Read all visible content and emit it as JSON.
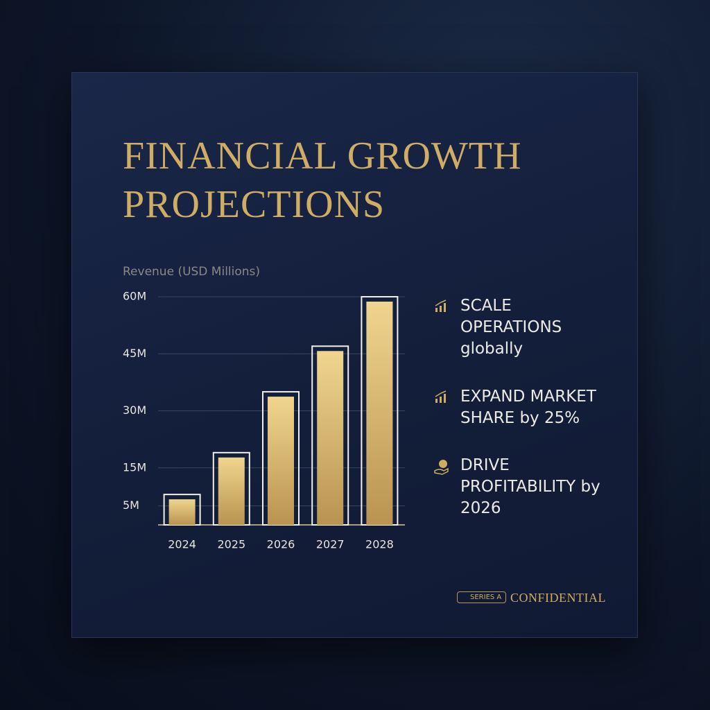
{
  "chart_data": {
    "type": "bar",
    "title": "FINANCIAL GROWTH PROJECTIONS",
    "y_label": "Revenue (USD Millions)",
    "categories": [
      "2024",
      "2025",
      "2026",
      "2027",
      "2028"
    ],
    "values": [
      8,
      19,
      35,
      47,
      60
    ],
    "color": "#d9b56a",
    "ylim": [
      0,
      60
    ],
    "yticks": [
      {
        "value": 5,
        "label": "5M"
      },
      {
        "value": 15,
        "label": "15M"
      },
      {
        "value": 30,
        "label": "30M"
      },
      {
        "value": 45,
        "label": "45M"
      },
      {
        "value": 60,
        "label": "60M"
      }
    ],
    "grid": true
  },
  "highlights": [
    "SCALE OPERATIONS globally",
    "EXPAND MARKET SHARE by 25%",
    "DRIVE PROFITABILITY by 2026"
  ],
  "footer": {
    "badge": "SERIES A",
    "label": "CONFIDENTIAL"
  }
}
